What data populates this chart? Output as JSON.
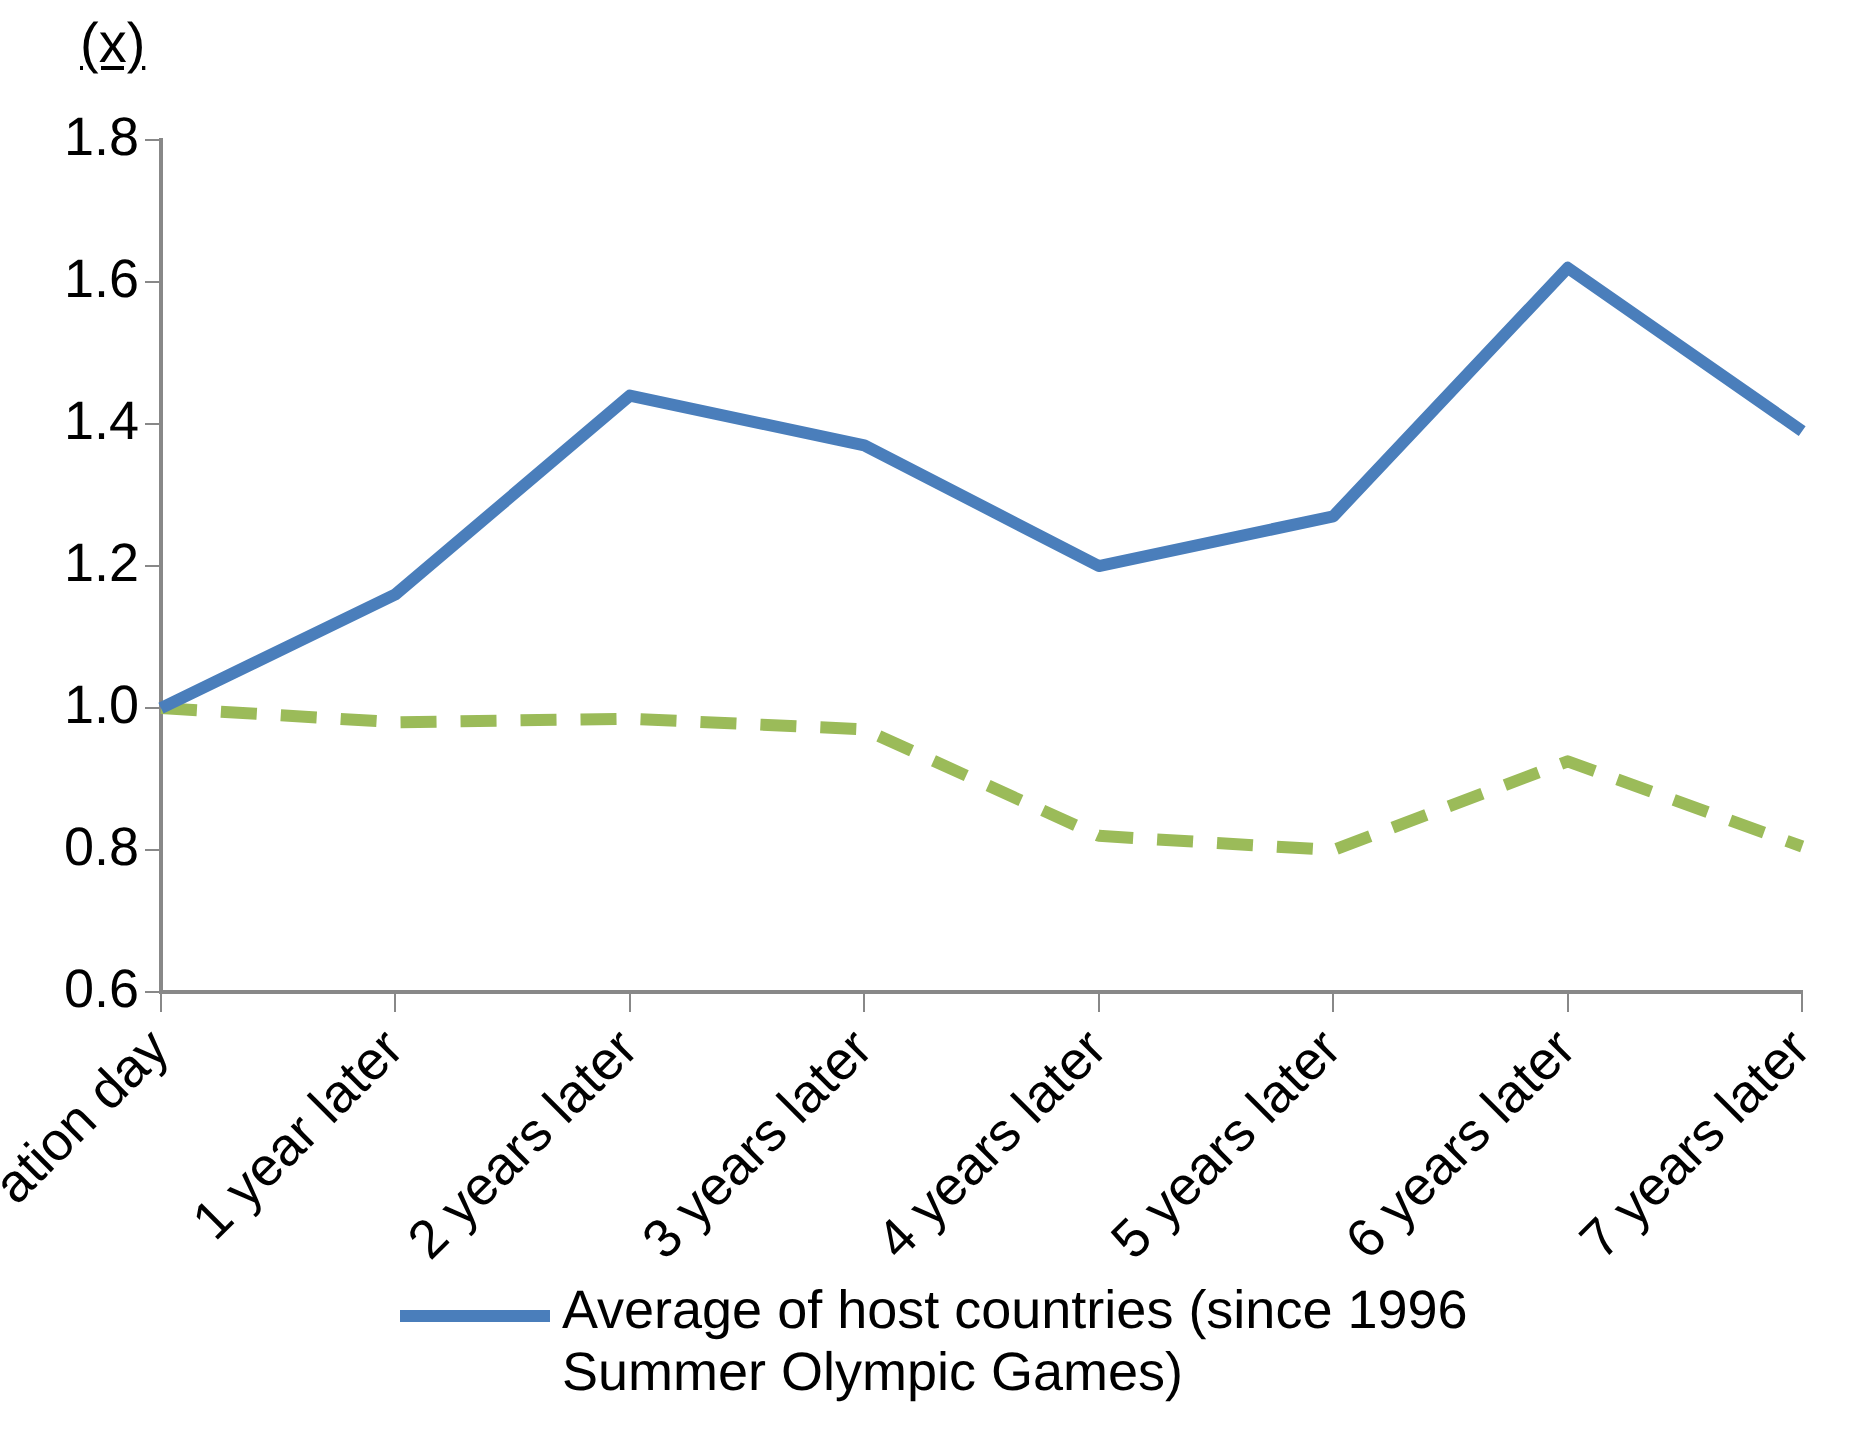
{
  "chart_data": {
    "type": "line",
    "ylabel": "(x)",
    "categories": [
      "ation day",
      "1 year later",
      "2 years later",
      "3 years later",
      "4 years later",
      "5 years later",
      "6 years later",
      "7 years later"
    ],
    "series": [
      {
        "name": "Average of host countries (since 1996 Summer Olympic Games)",
        "color": "#4a7ebb",
        "line_style": "solid",
        "values": [
          1.0,
          1.16,
          1.44,
          1.37,
          1.2,
          1.27,
          1.62,
          1.39
        ]
      },
      {
        "color": "#9bbb59",
        "line_style": "dashed",
        "values": [
          1.0,
          0.98,
          0.985,
          0.97,
          0.82,
          0.8,
          0.925,
          0.805
        ]
      }
    ],
    "ylim": [
      0.6,
      1.8
    ],
    "yticks": [
      {
        "value": 0.6,
        "label": "0.6"
      },
      {
        "value": 0.8,
        "label": "0.8"
      },
      {
        "value": 1,
        "label": "1.0"
      },
      {
        "value": 1.2,
        "label": "1.2"
      },
      {
        "value": 1.4,
        "label": "1.4"
      },
      {
        "value": 1.6,
        "label": "1.6"
      },
      {
        "value": 1.8,
        "label": "1.8"
      }
    ],
    "grid": false,
    "legend": "bottom",
    "marker": "none"
  }
}
